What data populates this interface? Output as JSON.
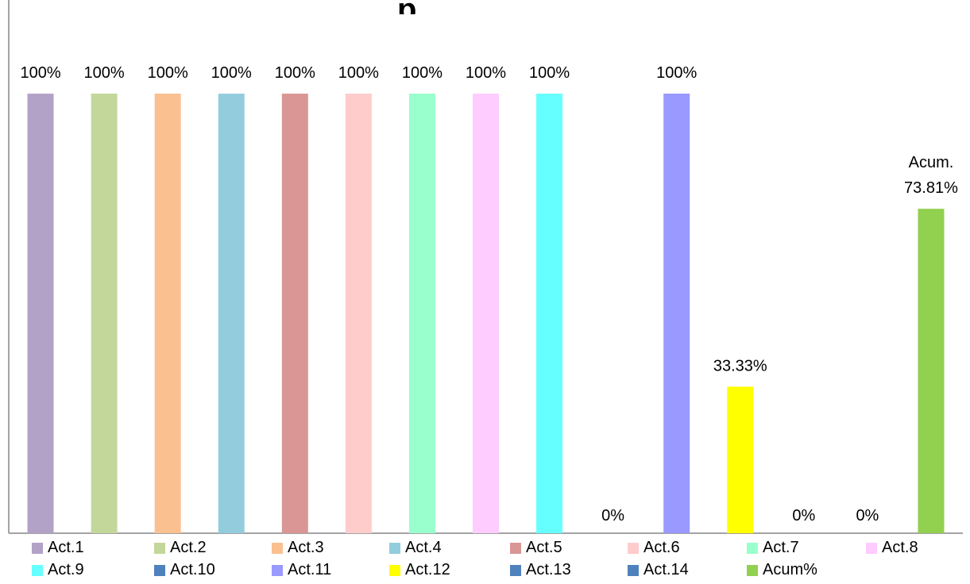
{
  "chart_data": {
    "type": "bar",
    "title": "",
    "xlabel": "",
    "ylabel": "",
    "ylim": [
      0,
      100
    ],
    "grid": false,
    "legend_position": "bottom",
    "series": [
      {
        "name": "Act.1",
        "value": 100,
        "label": "100%",
        "color": "#B3A2C7"
      },
      {
        "name": "Act.2",
        "value": 100,
        "label": "100%",
        "color": "#C4D79B"
      },
      {
        "name": "Act.3",
        "value": 100,
        "label": "100%",
        "color": "#FAC090"
      },
      {
        "name": "Act.4",
        "value": 100,
        "label": "100%",
        "color": "#93CDDD"
      },
      {
        "name": "Act.5",
        "value": 100,
        "label": "100%",
        "color": "#D99694"
      },
      {
        "name": "Act.6",
        "value": 100,
        "label": "100%",
        "color": "#FFCCCC"
      },
      {
        "name": "Act.7",
        "value": 100,
        "label": "100%",
        "color": "#99FFCC"
      },
      {
        "name": "Act.8",
        "value": 100,
        "label": "100%",
        "color": "#FFCCFF"
      },
      {
        "name": "Act.9",
        "value": 100,
        "label": "100%",
        "color": "#66FFFF"
      },
      {
        "name": "Act.10",
        "value": 0,
        "label": "0%",
        "color": "#4F81BD"
      },
      {
        "name": "Act.11",
        "value": 100,
        "label": "100%",
        "color": "#9999FF"
      },
      {
        "name": "Act.12",
        "value": 33.33,
        "label": "33.33%",
        "color": "#FFFF00"
      },
      {
        "name": "Act.13",
        "value": 0,
        "label": "0%",
        "color": "#4F81BD"
      },
      {
        "name": "Act.14",
        "value": 0,
        "label": "0%",
        "color": "#4F81BD"
      },
      {
        "name": "Acum%",
        "value": 73.81,
        "label": "73.81%",
        "label_prefix": "Acum.",
        "color": "#92D050"
      }
    ]
  }
}
